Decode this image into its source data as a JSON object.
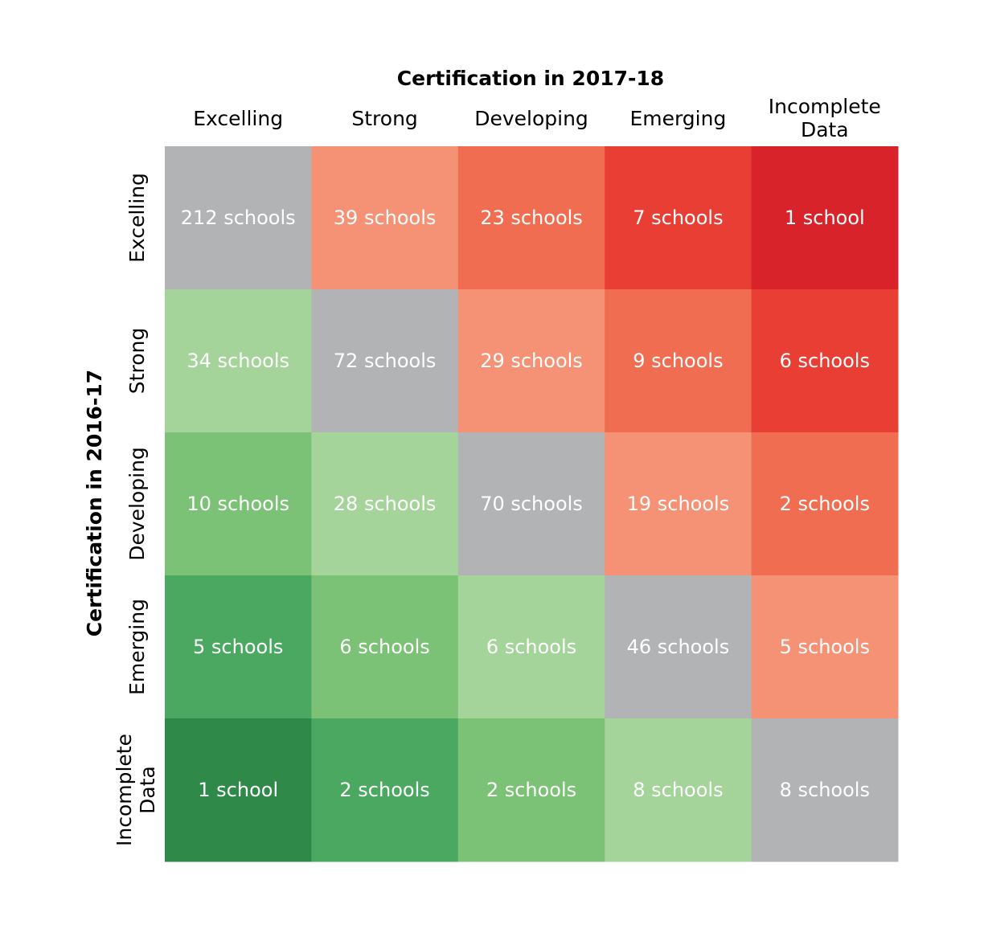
{
  "chart_data": {
    "type": "heatmap",
    "xlabel": "Certification in 2017-18",
    "ylabel": "Certification in 2016-17",
    "columns": [
      "Excelling",
      "Strong",
      "Developing",
      "Emerging",
      "Incomplete Data"
    ],
    "rows": [
      "Excelling",
      "Strong",
      "Developing",
      "Emerging",
      "Incomplete Data"
    ],
    "values": [
      [
        212,
        39,
        23,
        7,
        1
      ],
      [
        34,
        72,
        29,
        9,
        6
      ],
      [
        10,
        28,
        70,
        19,
        2
      ],
      [
        5,
        6,
        6,
        46,
        5
      ],
      [
        1,
        2,
        2,
        8,
        8
      ]
    ],
    "cell_labels": [
      [
        "212 schools",
        "39 schools",
        "23 schools",
        "7 schools",
        "1 school"
      ],
      [
        "34 schools",
        "72 schools",
        "29 schools",
        "9 schools",
        "6 schools"
      ],
      [
        "10 schools",
        "28 schools",
        "70 schools",
        "19 schools",
        "2 schools"
      ],
      [
        "5 schools",
        "6 schools",
        "6 schools",
        "46 schools",
        "5 schools"
      ],
      [
        "1 school",
        "2 schools",
        "2 schools",
        "8 schools",
        "8 schools"
      ]
    ],
    "colors": {
      "diagonal": "#b2b3b5",
      "red_1": "#f59276",
      "red_2": "#f16d51",
      "red_3": "#e83e33",
      "red_4": "#d9232a",
      "green_1": "#a4d49a",
      "green_2": "#7bc276",
      "green_3": "#4aa860",
      "green_4": "#2f8a4a"
    }
  }
}
